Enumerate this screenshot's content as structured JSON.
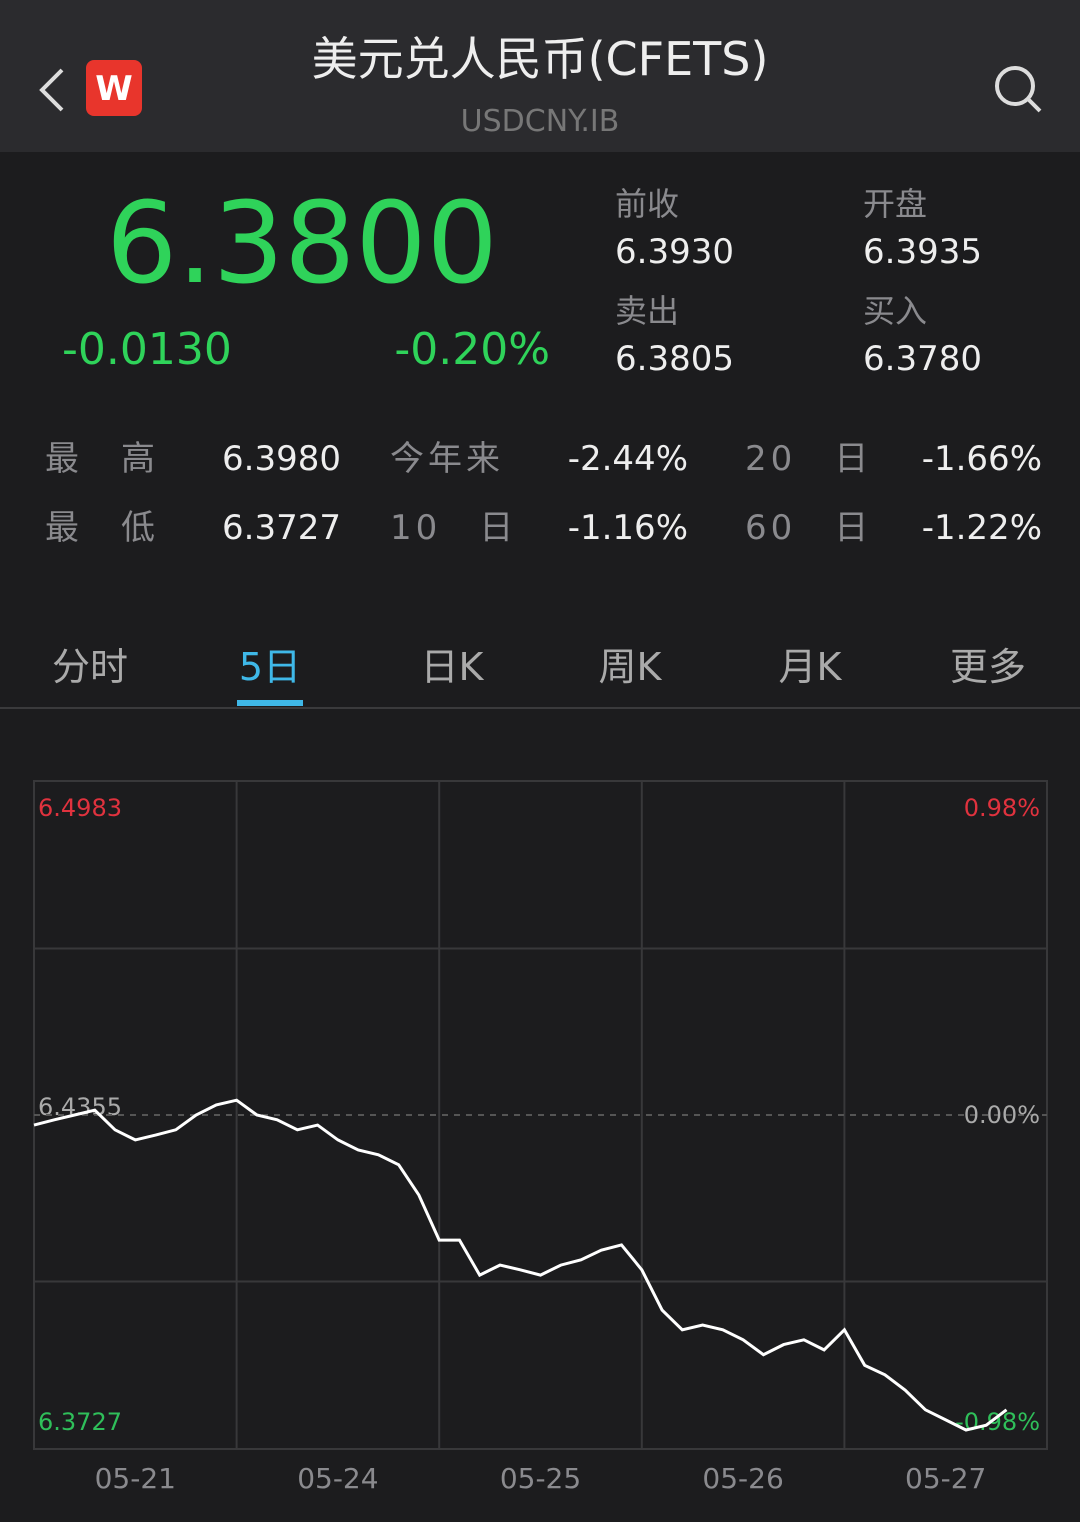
{
  "header": {
    "logo": "W",
    "title": "美元兑人民币(CFETS)",
    "code": "USDCNY.IB"
  },
  "quote": {
    "price": "6.3800",
    "change": "-0.0130",
    "change_pct": "-0.20%"
  },
  "side": [
    {
      "label": "前收",
      "value": "6.3930"
    },
    {
      "label": "开盘",
      "value": "6.3935"
    },
    {
      "label": "卖出",
      "value": "6.3805"
    },
    {
      "label": "买入",
      "value": "6.3780"
    }
  ],
  "stats": [
    [
      {
        "label": "最　高",
        "value": "6.3980"
      },
      {
        "label": "今年来",
        "value": "-2.44%"
      },
      {
        "label": "20　日",
        "value": "-1.66%"
      }
    ],
    [
      {
        "label": "最　低",
        "value": "6.3727"
      },
      {
        "label": "10　日",
        "value": "-1.16%"
      },
      {
        "label": "60　日",
        "value": "-1.22%"
      }
    ]
  ],
  "tabs": {
    "items": [
      "分时",
      "5日",
      "日K",
      "周K",
      "月K",
      "更多"
    ],
    "active": 1
  },
  "chart_data": {
    "type": "line",
    "color": "#ffffff",
    "x_labels": [
      "05-21",
      "05-24",
      "05-25",
      "05-26",
      "05-27"
    ],
    "values": [
      6.4336,
      6.4346,
      6.4355,
      6.4364,
      6.4327,
      6.4308,
      6.4317,
      6.4327,
      6.4355,
      6.4374,
      6.4383,
      6.4355,
      6.4346,
      6.4327,
      6.4336,
      6.4308,
      6.4289,
      6.428,
      6.4261,
      6.4204,
      6.4119,
      6.4119,
      6.4053,
      6.4072,
      6.4063,
      6.4053,
      6.4072,
      6.4082,
      6.41,
      6.411,
      6.4063,
      6.3987,
      6.395,
      6.3959,
      6.395,
      6.3931,
      6.3903,
      6.3922,
      6.3931,
      6.3912,
      6.395,
      6.3883,
      6.3865,
      6.3836,
      6.3799,
      6.378,
      6.3761,
      6.377,
      6.3799
    ],
    "ylim": [
      6.3727,
      6.4983
    ],
    "yticks": [
      6.4983,
      6.4355,
      6.3727
    ],
    "y2lim": [
      -0.98,
      0.98
    ],
    "y2ticks": [
      {
        "value": 0.98,
        "label": "0.98%"
      },
      {
        "value": 0,
        "label": "0.00%"
      },
      {
        "value": -0.98,
        "label": "-0.98%"
      }
    ]
  }
}
